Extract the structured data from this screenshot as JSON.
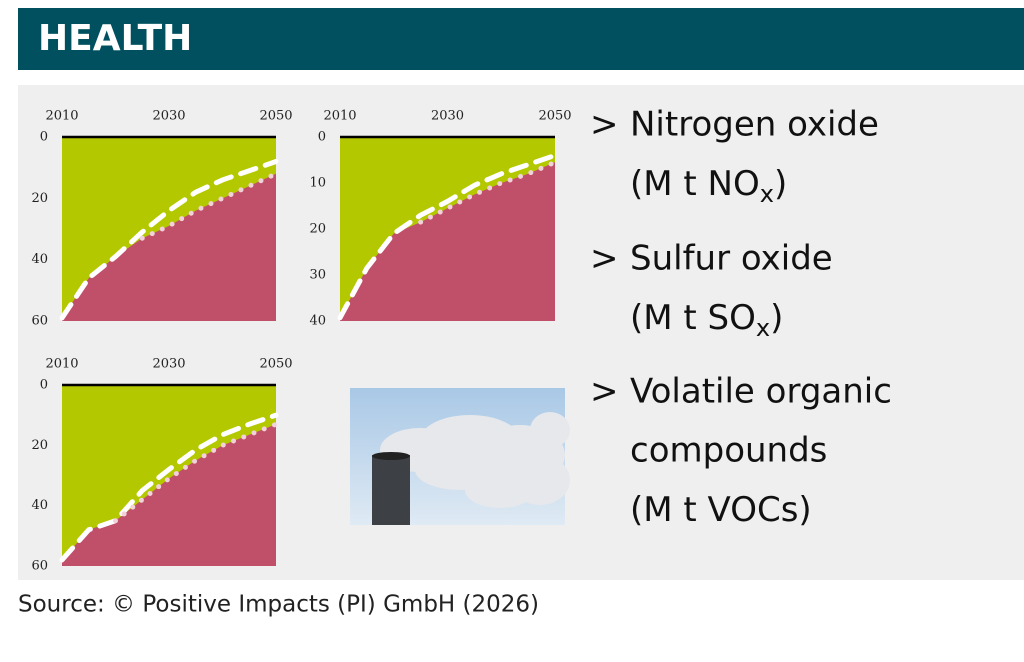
{
  "header": {
    "title": "HEALTH"
  },
  "chart_data": [
    {
      "type": "area",
      "x": [
        2010,
        2015,
        2020,
        2025,
        2030,
        2035,
        2040,
        2045,
        2050
      ],
      "xlim": [
        2010,
        2050
      ],
      "xticks": [
        2010,
        2030,
        2050
      ],
      "ylim": [
        0,
        60
      ],
      "yticks": [
        0,
        20,
        40,
        60
      ],
      "y_inverted": true,
      "fill_below": "#c0506a",
      "fill_above": "#b4c800",
      "series": [
        {
          "style": "dashed",
          "color": "#ffffff",
          "values": [
            59,
            46,
            39,
            31,
            24,
            18,
            14,
            11,
            8
          ]
        },
        {
          "style": "dotted",
          "color": "#f2d2da",
          "values": [
            null,
            null,
            null,
            33,
            29,
            24,
            20,
            16,
            12
          ]
        }
      ]
    },
    {
      "type": "area",
      "x": [
        2010,
        2015,
        2020,
        2025,
        2030,
        2035,
        2040,
        2045,
        2050
      ],
      "xlim": [
        2010,
        2050
      ],
      "xticks": [
        2010,
        2030,
        2050
      ],
      "ylim": [
        0,
        40
      ],
      "yticks": [
        0,
        10,
        20,
        30,
        40
      ],
      "y_inverted": true,
      "fill_below": "#c0506a",
      "fill_above": "#b4c800",
      "series": [
        {
          "style": "dashed",
          "color": "#ffffff",
          "values": [
            39.3,
            28.5,
            21,
            17,
            14,
            10.5,
            8,
            6,
            4
          ]
        },
        {
          "style": "dotted",
          "color": "#f2d2da",
          "values": [
            null,
            null,
            null,
            18.5,
            15.5,
            12.5,
            10,
            8,
            5.5
          ]
        }
      ]
    },
    {
      "type": "area",
      "x": [
        2010,
        2015,
        2020,
        2025,
        2030,
        2035,
        2040,
        2045,
        2050
      ],
      "xlim": [
        2010,
        2050
      ],
      "xticks": [
        2010,
        2030,
        2050
      ],
      "ylim": [
        0,
        60
      ],
      "yticks": [
        0,
        20,
        40,
        60
      ],
      "y_inverted": true,
      "fill_below": "#c0506a",
      "fill_above": "#b4c800",
      "series": [
        {
          "style": "dashed",
          "color": "#ffffff",
          "values": [
            58,
            48,
            45,
            35,
            28,
            21.5,
            16.5,
            13,
            10
          ]
        },
        {
          "style": "dotted",
          "color": "#f2d2da",
          "values": [
            null,
            null,
            45,
            38,
            31,
            25,
            20,
            16.5,
            13
          ]
        }
      ]
    }
  ],
  "items": [
    {
      "marker": ">",
      "lines": [
        "Nitrogen oxide"
      ],
      "unit": [
        "(M t NO",
        "x",
        ")"
      ]
    },
    {
      "marker": ">",
      "lines": [
        "Sulfur oxide"
      ],
      "unit": [
        "(M t SO",
        "x",
        ")"
      ]
    },
    {
      "marker": ">",
      "lines": [
        "Volatile organic",
        "compounds"
      ],
      "unit": [
        "(M t VOCs)"
      ]
    }
  ],
  "source": "Source: © Positive Impacts (PI) GmbH (2026)"
}
